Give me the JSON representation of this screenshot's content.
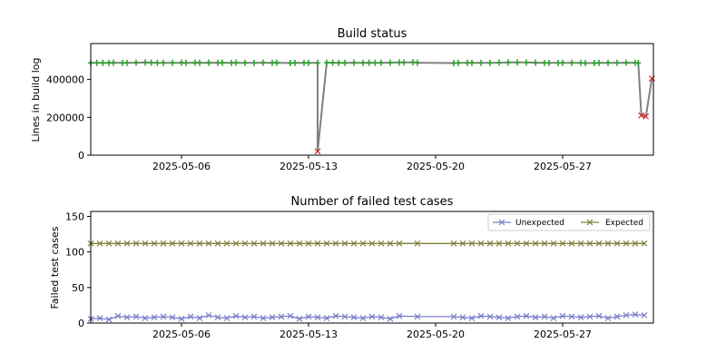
{
  "chart_data": [
    {
      "type": "line",
      "title": "Build status",
      "xlabel": "",
      "ylabel": "Lines in build log",
      "xlim": [
        "2025-05-01",
        "2025-06-01"
      ],
      "ylim": [
        0,
        590000
      ],
      "yticks": [
        0,
        200000,
        400000
      ],
      "xticks": [
        "2025-05-06",
        "2025-05-13",
        "2025-05-20",
        "2025-05-27"
      ],
      "grid": false,
      "line_color": "#808080",
      "success_color": "#2ca02c",
      "failure_color": "#d62728",
      "success_marker": "plus",
      "failure_marker": "x",
      "success_points": [
        [
          "2025-05-01",
          488000
        ],
        [
          "2025-05-01T08:00",
          488000
        ],
        [
          "2025-05-01T16:00",
          488000
        ],
        [
          "2025-05-02",
          488000
        ],
        [
          "2025-05-02T06:00",
          489000
        ],
        [
          "2025-05-02T18:00",
          488000
        ],
        [
          "2025-05-03",
          488000
        ],
        [
          "2025-05-03T12:00",
          489000
        ],
        [
          "2025-05-04",
          490000
        ],
        [
          "2025-05-04T08:00",
          489000
        ],
        [
          "2025-05-04T16:00",
          488000
        ],
        [
          "2025-05-05",
          488000
        ],
        [
          "2025-05-05T12:00",
          488000
        ],
        [
          "2025-05-06",
          489000
        ],
        [
          "2025-05-06T06:00",
          488000
        ],
        [
          "2025-05-06T18:00",
          489000
        ],
        [
          "2025-05-07",
          488000
        ],
        [
          "2025-05-07T12:00",
          489000
        ],
        [
          "2025-05-08",
          488000
        ],
        [
          "2025-05-08T06:00",
          489000
        ],
        [
          "2025-05-08T18:00",
          488000
        ],
        [
          "2025-05-09",
          489000
        ],
        [
          "2025-05-09T12:00",
          488000
        ],
        [
          "2025-05-10",
          488000
        ],
        [
          "2025-05-10T12:00",
          489000
        ],
        [
          "2025-05-11",
          488000
        ],
        [
          "2025-05-11T06:00",
          489000
        ],
        [
          "2025-05-12",
          487000
        ],
        [
          "2025-05-12T06:00",
          488000
        ],
        [
          "2025-05-12T18:00",
          488000
        ],
        [
          "2025-05-13",
          488000
        ],
        [
          "2025-05-13T12:00",
          488000
        ],
        [
          "2025-05-14",
          489000
        ],
        [
          "2025-05-14T08:00",
          489000
        ],
        [
          "2025-05-14T16:00",
          488000
        ],
        [
          "2025-05-15",
          488000
        ],
        [
          "2025-05-15T12:00",
          489000
        ],
        [
          "2025-05-16",
          488000
        ],
        [
          "2025-05-16T08:00",
          489000
        ],
        [
          "2025-05-16T16:00",
          488000
        ],
        [
          "2025-05-17",
          489000
        ],
        [
          "2025-05-17T12:00",
          489000
        ],
        [
          "2025-05-18",
          490000
        ],
        [
          "2025-05-18T06:00",
          490000
        ],
        [
          "2025-05-18T18:00",
          491000
        ],
        [
          "2025-05-19",
          489000
        ],
        [
          "2025-05-21",
          487000
        ],
        [
          "2025-05-21T06:00",
          488000
        ],
        [
          "2025-05-21T18:00",
          488000
        ],
        [
          "2025-05-22",
          488000
        ],
        [
          "2025-05-22T12:00",
          488000
        ],
        [
          "2025-05-23",
          488000
        ],
        [
          "2025-05-23T12:00",
          489000
        ],
        [
          "2025-05-24",
          490000
        ],
        [
          "2025-05-24T12:00",
          490000
        ],
        [
          "2025-05-25",
          490000
        ],
        [
          "2025-05-25T12:00",
          489000
        ],
        [
          "2025-05-26",
          488000
        ],
        [
          "2025-05-26T06:00",
          488000
        ],
        [
          "2025-05-26T18:00",
          488000
        ],
        [
          "2025-05-27",
          488000
        ],
        [
          "2025-05-27T12:00",
          488000
        ],
        [
          "2025-05-28",
          488000
        ],
        [
          "2025-05-28T06:00",
          487000
        ],
        [
          "2025-05-28T18:00",
          487000
        ],
        [
          "2025-05-29",
          488000
        ],
        [
          "2025-05-29T12:00",
          488000
        ],
        [
          "2025-05-30",
          488000
        ],
        [
          "2025-05-30T12:00",
          489000
        ],
        [
          "2025-05-31",
          488000
        ],
        [
          "2025-05-31T04:00",
          488000
        ]
      ],
      "failure_points": [
        [
          "2025-05-13T12:00",
          20000
        ],
        [
          "2025-05-31T08:00",
          210000
        ],
        [
          "2025-05-31T14:00",
          205000
        ],
        [
          "2025-05-31T22:00",
          405000
        ]
      ]
    },
    {
      "type": "line",
      "title": "Number of failed test cases",
      "xlabel": "",
      "ylabel": "Failed test cases",
      "xlim": [
        "2025-05-01",
        "2025-06-01"
      ],
      "ylim": [
        0,
        157
      ],
      "yticks": [
        0,
        50,
        100,
        150
      ],
      "xticks": [
        "2025-05-06",
        "2025-05-13",
        "2025-05-20",
        "2025-05-27"
      ],
      "grid": false,
      "legend_position": "top-right",
      "marker": "x",
      "series": [
        {
          "name": "Unexpected",
          "color": "#7b7fc9",
          "x": [
            "2025-05-01",
            "2025-05-01T12:00",
            "2025-05-02",
            "2025-05-02T12:00",
            "2025-05-03",
            "2025-05-03T12:00",
            "2025-05-04",
            "2025-05-04T12:00",
            "2025-05-05",
            "2025-05-05T12:00",
            "2025-05-06",
            "2025-05-06T12:00",
            "2025-05-07",
            "2025-05-07T12:00",
            "2025-05-08",
            "2025-05-08T12:00",
            "2025-05-09",
            "2025-05-09T12:00",
            "2025-05-10",
            "2025-05-10T12:00",
            "2025-05-11",
            "2025-05-11T12:00",
            "2025-05-12",
            "2025-05-12T12:00",
            "2025-05-13",
            "2025-05-13T12:00",
            "2025-05-14",
            "2025-05-14T12:00",
            "2025-05-15",
            "2025-05-15T12:00",
            "2025-05-16",
            "2025-05-16T12:00",
            "2025-05-17",
            "2025-05-17T12:00",
            "2025-05-18",
            "2025-05-19",
            "2025-05-21",
            "2025-05-21T12:00",
            "2025-05-22",
            "2025-05-22T12:00",
            "2025-05-23",
            "2025-05-23T12:00",
            "2025-05-24",
            "2025-05-24T12:00",
            "2025-05-25",
            "2025-05-25T12:00",
            "2025-05-26",
            "2025-05-26T12:00",
            "2025-05-27",
            "2025-05-27T12:00",
            "2025-05-28",
            "2025-05-28T12:00",
            "2025-05-29",
            "2025-05-29T12:00",
            "2025-05-30",
            "2025-05-30T12:00",
            "2025-05-31",
            "2025-05-31T12:00"
          ],
          "values": [
            6,
            7,
            5,
            10,
            8,
            9,
            7,
            8,
            9,
            8,
            6,
            9,
            7,
            11,
            8,
            7,
            10,
            8,
            9,
            7,
            8,
            9,
            10,
            6,
            9,
            8,
            7,
            10,
            9,
            8,
            7,
            9,
            8,
            6,
            10,
            9,
            9,
            8,
            7,
            10,
            9,
            8,
            7,
            9,
            10,
            8,
            9,
            7,
            10,
            9,
            8,
            9,
            10,
            7,
            9,
            11,
            12,
            11
          ]
        },
        {
          "name": "Expected",
          "color": "#7f7f3a",
          "x": [
            "2025-05-01",
            "2025-05-01T12:00",
            "2025-05-02",
            "2025-05-02T12:00",
            "2025-05-03",
            "2025-05-03T12:00",
            "2025-05-04",
            "2025-05-04T12:00",
            "2025-05-05",
            "2025-05-05T12:00",
            "2025-05-06",
            "2025-05-06T12:00",
            "2025-05-07",
            "2025-05-07T12:00",
            "2025-05-08",
            "2025-05-08T12:00",
            "2025-05-09",
            "2025-05-09T12:00",
            "2025-05-10",
            "2025-05-10T12:00",
            "2025-05-11",
            "2025-05-11T12:00",
            "2025-05-12",
            "2025-05-12T12:00",
            "2025-05-13",
            "2025-05-13T12:00",
            "2025-05-14",
            "2025-05-14T12:00",
            "2025-05-15",
            "2025-05-15T12:00",
            "2025-05-16",
            "2025-05-16T12:00",
            "2025-05-17",
            "2025-05-17T12:00",
            "2025-05-18",
            "2025-05-19",
            "2025-05-21",
            "2025-05-21T12:00",
            "2025-05-22",
            "2025-05-22T12:00",
            "2025-05-23",
            "2025-05-23T12:00",
            "2025-05-24",
            "2025-05-24T12:00",
            "2025-05-25",
            "2025-05-25T12:00",
            "2025-05-26",
            "2025-05-26T12:00",
            "2025-05-27",
            "2025-05-27T12:00",
            "2025-05-28",
            "2025-05-28T12:00",
            "2025-05-29",
            "2025-05-29T12:00",
            "2025-05-30",
            "2025-05-30T12:00",
            "2025-05-31",
            "2025-05-31T12:00"
          ],
          "values": [
            112,
            112,
            112,
            112,
            112,
            112,
            112,
            112,
            112,
            112,
            112,
            112,
            112,
            112,
            112,
            112,
            112,
            112,
            112,
            112,
            112,
            112,
            112,
            112,
            112,
            112,
            112,
            112,
            112,
            112,
            112,
            112,
            112,
            112,
            112,
            112,
            112,
            112,
            112,
            112,
            112,
            112,
            112,
            112,
            112,
            112,
            112,
            112,
            112,
            112,
            112,
            112,
            112,
            112,
            112,
            112,
            112,
            112
          ]
        }
      ]
    }
  ]
}
